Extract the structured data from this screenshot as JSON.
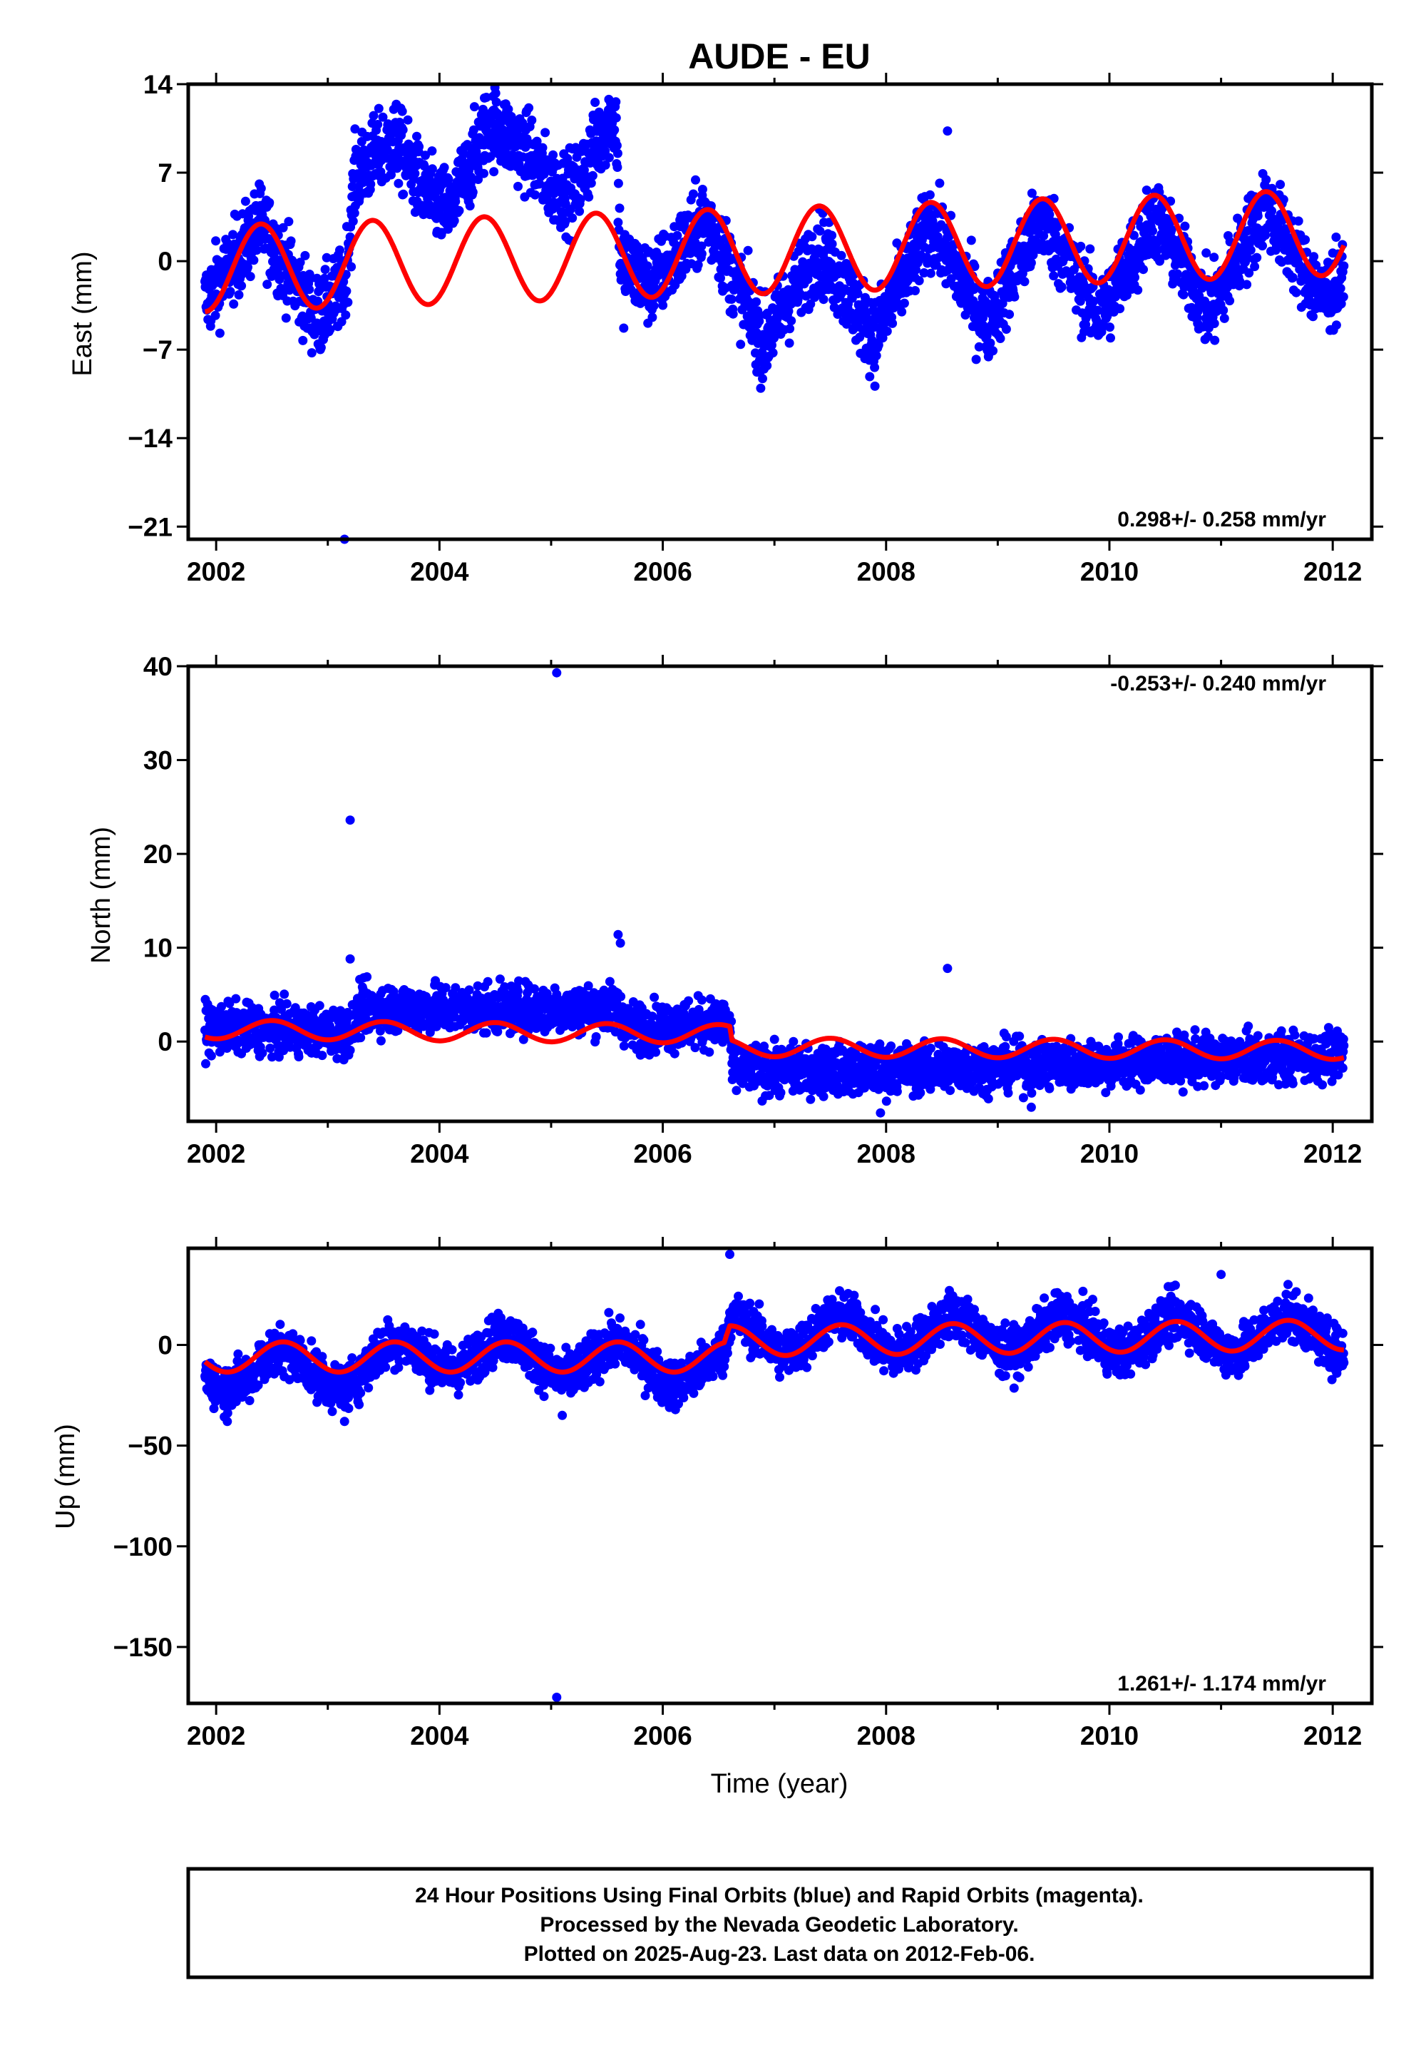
{
  "title": "AUDE - EU",
  "colors": {
    "data": "#0000ff",
    "model": "#ff0000",
    "frame": "#000000"
  },
  "footer": {
    "line1": "24 Hour Positions Using Final Orbits (blue) and Rapid Orbits (magenta).",
    "line2": "Processed by the Nevada Geodetic Laboratory.",
    "line3": "Plotted on 2025-Aug-23. Last data on 2012-Feb-06."
  },
  "chart_data": [
    {
      "type": "scatter",
      "component": "east",
      "ylabel": "East (mm)",
      "xlabel": "",
      "xlim": [
        2001.75,
        2012.35
      ],
      "ylim": [
        -22,
        14
      ],
      "xticks": [
        2002,
        2004,
        2006,
        2008,
        2010,
        2012
      ],
      "yticks": [
        14,
        7,
        0,
        -7,
        -14,
        -21
      ],
      "ytick_labels": [
        "14",
        "7",
        "0",
        "−7",
        "−14",
        "−21"
      ],
      "rate": "0.298+/- 0.258 mm/yr",
      "rate_position": "bottom-right",
      "data_range": [
        2001.9,
        2012.1
      ],
      "data_trend": [
        [
          2001.9,
          -3.2
        ],
        [
          2002.4,
          3.0
        ],
        [
          2002.9,
          -4.5
        ],
        [
          2003.15,
          -2.0
        ],
        [
          2003.25,
          7.0
        ],
        [
          2003.6,
          9.5
        ],
        [
          2003.9,
          5.0
        ],
        [
          2004.1,
          4.0
        ],
        [
          2004.45,
          11.0
        ],
        [
          2004.8,
          8.5
        ],
        [
          2005.0,
          6.0
        ],
        [
          2005.2,
          5.5
        ],
        [
          2005.5,
          11.0
        ],
        [
          2005.58,
          11.5
        ],
        [
          2005.62,
          0.0
        ],
        [
          2005.9,
          -2.0
        ],
        [
          2006.4,
          3.5
        ],
        [
          2006.9,
          -6.5
        ],
        [
          2007.4,
          1.0
        ],
        [
          2007.9,
          -6.0
        ],
        [
          2008.4,
          3.0
        ],
        [
          2008.9,
          -5.0
        ],
        [
          2009.4,
          3.5
        ],
        [
          2009.9,
          -4.5
        ],
        [
          2010.4,
          3.5
        ],
        [
          2010.9,
          -4.0
        ],
        [
          2011.4,
          4.5
        ],
        [
          2011.9,
          -3.0
        ],
        [
          2012.1,
          -1.5
        ]
      ],
      "data_noise": 1.6,
      "outliers": [
        [
          2003.15,
          -22
        ],
        [
          2008.55,
          10.3
        ],
        [
          2005.65,
          -5.3
        ]
      ],
      "model_range": [
        2001.9,
        2012.1
      ],
      "model_trend": [
        [
          2001.9,
          -0.6
        ],
        [
          2012.1,
          2.3
        ]
      ],
      "model_amplitude": 3.4,
      "model_peak_phase": 0.4
    },
    {
      "type": "scatter",
      "component": "north",
      "ylabel": "North (mm)",
      "xlabel": "",
      "xlim": [
        2001.75,
        2012.35
      ],
      "ylim": [
        -8.5,
        40
      ],
      "xticks": [
        2002,
        2004,
        2006,
        2008,
        2010,
        2012
      ],
      "yticks": [
        40,
        30,
        20,
        10,
        0
      ],
      "ytick_labels": [
        "40",
        "30",
        "20",
        "10",
        "0"
      ],
      "rate": "-0.253+/- 0.240 mm/yr",
      "rate_position": "top-right",
      "data_range": [
        2001.9,
        2012.1
      ],
      "data_trend": [
        [
          2001.9,
          1.5
        ],
        [
          2003.2,
          1.0
        ],
        [
          2003.3,
          3.5
        ],
        [
          2005.6,
          3.5
        ],
        [
          2005.7,
          1.5
        ],
        [
          2006.6,
          2.0
        ],
        [
          2006.62,
          -3.0
        ],
        [
          2008.0,
          -3.0
        ],
        [
          2012.1,
          -1.5
        ]
      ],
      "data_noise": 1.3,
      "outliers": [
        [
          2005.05,
          39.3
        ],
        [
          2003.2,
          23.6
        ],
        [
          2003.2,
          8.8
        ],
        [
          2005.6,
          11.4
        ],
        [
          2005.62,
          10.5
        ],
        [
          2008.55,
          7.8
        ],
        [
          2009.3,
          -7.0
        ],
        [
          2007.95,
          -7.6
        ]
      ],
      "model_range": [
        2001.9,
        2012.1
      ],
      "model_trend": [
        [
          2001.9,
          1.3
        ],
        [
          2006.6,
          0.8
        ],
        [
          2006.62,
          -0.6
        ],
        [
          2012.1,
          -0.9
        ]
      ],
      "model_amplitude": 1.0,
      "model_peak_phase": 0.5
    },
    {
      "type": "scatter",
      "component": "up",
      "ylabel": "Up (mm)",
      "xlabel": "Time (year)",
      "xlim": [
        2001.75,
        2012.35
      ],
      "ylim": [
        -178,
        48
      ],
      "xticks": [
        2002,
        2004,
        2006,
        2008,
        2010,
        2012
      ],
      "yticks": [
        0,
        -50,
        -100,
        -150
      ],
      "ytick_labels": [
        "0",
        "−50",
        "−100",
        "−150"
      ],
      "rate": "1.261+/- 1.174 mm/yr",
      "rate_position": "bottom-right",
      "data_range": [
        2001.9,
        2012.1
      ],
      "data_trend": [
        [
          2001.9,
          -12
        ],
        [
          2003.2,
          -12
        ],
        [
          2004.0,
          -3
        ],
        [
          2006.55,
          -12
        ],
        [
          2006.6,
          5
        ],
        [
          2012.1,
          5
        ]
      ],
      "data_noise": 6.0,
      "data_amplitude": 9.0,
      "outliers": [
        [
          2005.05,
          -175
        ],
        [
          2006.6,
          45
        ],
        [
          2011.0,
          35
        ],
        [
          2011.6,
          30
        ],
        [
          2005.1,
          -35
        ],
        [
          2003.15,
          -38
        ],
        [
          2002.1,
          -38
        ]
      ],
      "model_range": [
        2001.9,
        2012.1
      ],
      "model_trend": [
        [
          2001.9,
          -6
        ],
        [
          2006.55,
          -6
        ],
        [
          2006.6,
          2
        ],
        [
          2012.1,
          5
        ]
      ],
      "model_amplitude": 7.5,
      "model_peak_phase": 0.6
    }
  ]
}
